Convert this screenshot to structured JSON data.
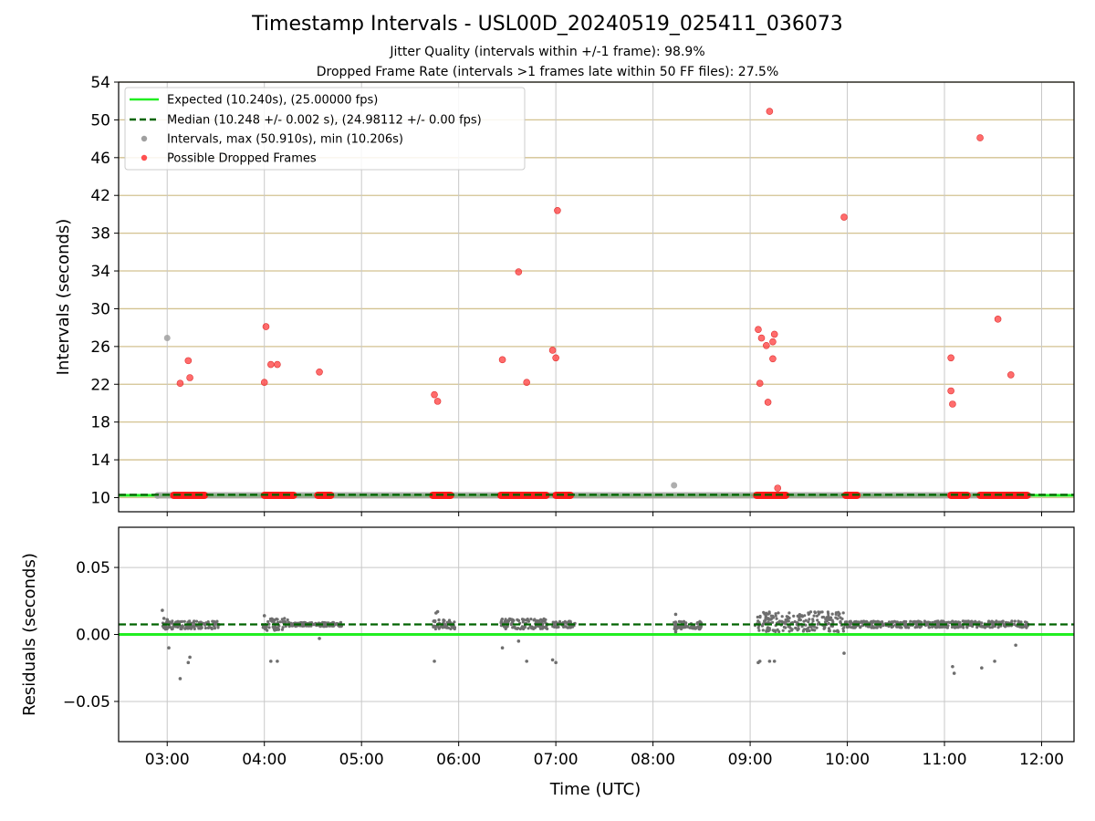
{
  "chart_data": [
    {
      "type": "scatter",
      "title": "Timestamp Intervals - USL00D_20240519_025411_036073",
      "subtitles": [
        "Jitter Quality (intervals within +/-1 frame): 98.9%",
        "Dropped Frame Rate (intervals >1 frames late within 50 FF files): 27.5%"
      ],
      "xlabel": "",
      "ylabel": "Intervals (seconds)",
      "xlim": [
        "02:30",
        "12:20"
      ],
      "ylim": [
        8.5,
        54
      ],
      "yticks": [
        10,
        14,
        18,
        22,
        26,
        30,
        34,
        38,
        42,
        46,
        50,
        54
      ],
      "grid": true,
      "legend_position": "top-left",
      "legend": [
        "Expected (10.240s), (25.00000 fps)",
        "Median (10.248 +/- 0.002 s), (24.98112 +/- 0.00 fps)",
        "Intervals, max (50.910s), min (10.206s)",
        "Possible Dropped Frames"
      ],
      "expected_interval": 10.24,
      "median_interval": 10.248,
      "series": [
        {
          "name": "Intervals, max (50.910s), min (10.206s)",
          "points": [
            {
              "x": "02:54",
              "y": 10.2
            },
            {
              "x": "03:00",
              "y": 26.9
            },
            {
              "x": "08:13",
              "y": 11.3
            }
          ],
          "bands": [
            {
              "x_start": "02:54",
              "x_end": "11:52",
              "y": 10.24
            }
          ]
        },
        {
          "name": "Possible Dropped Frames",
          "points": [
            {
              "x": "03:08",
              "y": 22.1
            },
            {
              "x": "03:13",
              "y": 24.5
            },
            {
              "x": "03:14",
              "y": 22.7
            },
            {
              "x": "04:00",
              "y": 22.2
            },
            {
              "x": "04:01",
              "y": 28.1
            },
            {
              "x": "04:04",
              "y": 24.1
            },
            {
              "x": "04:08",
              "y": 24.1
            },
            {
              "x": "04:34",
              "y": 23.3
            },
            {
              "x": "05:45",
              "y": 20.9
            },
            {
              "x": "05:47",
              "y": 20.2
            },
            {
              "x": "06:27",
              "y": 24.6
            },
            {
              "x": "06:37",
              "y": 33.9
            },
            {
              "x": "06:42",
              "y": 22.2
            },
            {
              "x": "06:58",
              "y": 25.6
            },
            {
              "x": "07:00",
              "y": 24.8
            },
            {
              "x": "07:01",
              "y": 40.4
            },
            {
              "x": "09:05",
              "y": 27.8
            },
            {
              "x": "09:06",
              "y": 22.1
            },
            {
              "x": "09:07",
              "y": 26.9
            },
            {
              "x": "09:10",
              "y": 26.1
            },
            {
              "x": "09:11",
              "y": 20.1
            },
            {
              "x": "09:12",
              "y": 50.9
            },
            {
              "x": "09:14",
              "y": 24.7
            },
            {
              "x": "09:14",
              "y": 26.5
            },
            {
              "x": "09:15",
              "y": 27.3
            },
            {
              "x": "09:17",
              "y": 11.0
            },
            {
              "x": "09:58",
              "y": 39.7
            },
            {
              "x": "11:04",
              "y": 24.8
            },
            {
              "x": "11:04",
              "y": 21.3
            },
            {
              "x": "11:05",
              "y": 19.9
            },
            {
              "x": "11:22",
              "y": 48.1
            },
            {
              "x": "11:33",
              "y": 28.9
            },
            {
              "x": "11:41",
              "y": 23.0
            }
          ],
          "bands": [
            {
              "x_start": "03:04",
              "x_end": "03:23",
              "y": 10.24
            },
            {
              "x_start": "04:00",
              "x_end": "04:18",
              "y": 10.24
            },
            {
              "x_start": "04:33",
              "x_end": "04:41",
              "y": 10.24
            },
            {
              "x_start": "05:44",
              "x_end": "05:55",
              "y": 10.24
            },
            {
              "x_start": "06:26",
              "x_end": "06:54",
              "y": 10.24
            },
            {
              "x_start": "07:00",
              "x_end": "07:09",
              "y": 10.24
            },
            {
              "x_start": "09:04",
              "x_end": "09:22",
              "y": 10.24
            },
            {
              "x_start": "09:59",
              "x_end": "10:06",
              "y": 10.24
            },
            {
              "x_start": "11:04",
              "x_end": "11:14",
              "y": 10.24
            },
            {
              "x_start": "11:22",
              "x_end": "11:51",
              "y": 10.24
            }
          ]
        }
      ]
    },
    {
      "type": "scatter",
      "title": "",
      "xlabel": "Time (UTC)",
      "ylabel": "Residuals (seconds)",
      "xlim": [
        "02:30",
        "12:20"
      ],
      "xticks": [
        "03:00",
        "04:00",
        "05:00",
        "06:00",
        "07:00",
        "08:00",
        "09:00",
        "10:00",
        "11:00",
        "12:00"
      ],
      "ylim": [
        -0.08,
        0.08
      ],
      "yticks": [
        0.05,
        0.0,
        -0.05
      ],
      "ytick_labels": [
        "0.05",
        "0.00",
        "−0.05"
      ],
      "grid": true,
      "expected_residual": 0.0,
      "median_residual": 0.0075,
      "series": [
        {
          "name": "Residuals",
          "points": [
            {
              "x": "02:57",
              "y": 0.018
            },
            {
              "x": "02:58",
              "y": 0.012
            },
            {
              "x": "02:59",
              "y": 0.004
            },
            {
              "x": "03:00",
              "y": 0.011
            },
            {
              "x": "03:01",
              "y": -0.01
            },
            {
              "x": "03:08",
              "y": -0.033
            },
            {
              "x": "03:13",
              "y": -0.021
            },
            {
              "x": "03:14",
              "y": -0.017
            },
            {
              "x": "04:00",
              "y": 0.014
            },
            {
              "x": "04:01",
              "y": 0.004
            },
            {
              "x": "04:04",
              "y": -0.02
            },
            {
              "x": "04:08",
              "y": -0.02
            },
            {
              "x": "04:34",
              "y": -0.003
            },
            {
              "x": "05:45",
              "y": -0.02
            },
            {
              "x": "05:46",
              "y": 0.016
            },
            {
              "x": "05:47",
              "y": 0.017
            },
            {
              "x": "06:27",
              "y": -0.01
            },
            {
              "x": "06:37",
              "y": -0.005
            },
            {
              "x": "06:42",
              "y": -0.02
            },
            {
              "x": "06:58",
              "y": -0.019
            },
            {
              "x": "07:00",
              "y": -0.021
            },
            {
              "x": "08:14",
              "y": 0.015
            },
            {
              "x": "08:14",
              "y": 0.002
            },
            {
              "x": "09:05",
              "y": -0.021
            },
            {
              "x": "09:06",
              "y": -0.02
            },
            {
              "x": "09:12",
              "y": -0.02
            },
            {
              "x": "09:15",
              "y": -0.02
            },
            {
              "x": "09:58",
              "y": -0.014
            },
            {
              "x": "11:05",
              "y": -0.024
            },
            {
              "x": "11:06",
              "y": -0.029
            },
            {
              "x": "11:23",
              "y": -0.025
            },
            {
              "x": "11:31",
              "y": -0.02
            },
            {
              "x": "11:44",
              "y": -0.008
            }
          ],
          "bands": [
            {
              "x_start": "02:57",
              "x_end": "03:33",
              "y_low": 0.004,
              "y_high": 0.01
            },
            {
              "x_start": "03:59",
              "x_end": "04:15",
              "y_low": 0.003,
              "y_high": 0.012
            },
            {
              "x_start": "04:15",
              "x_end": "04:48",
              "y_low": 0.006,
              "y_high": 0.009
            },
            {
              "x_start": "05:44",
              "x_end": "05:58",
              "y_low": 0.004,
              "y_high": 0.011
            },
            {
              "x_start": "06:26",
              "x_end": "06:55",
              "y_low": 0.004,
              "y_high": 0.012
            },
            {
              "x_start": "06:58",
              "x_end": "07:12",
              "y_low": 0.005,
              "y_high": 0.01
            },
            {
              "x_start": "08:13",
              "x_end": "08:30",
              "y_low": 0.004,
              "y_high": 0.01
            },
            {
              "x_start": "09:03",
              "x_end": "09:58",
              "y_low": 0.002,
              "y_high": 0.017
            },
            {
              "x_start": "09:58",
              "x_end": "11:52",
              "y_low": 0.005,
              "y_high": 0.01
            }
          ]
        }
      ]
    }
  ]
}
